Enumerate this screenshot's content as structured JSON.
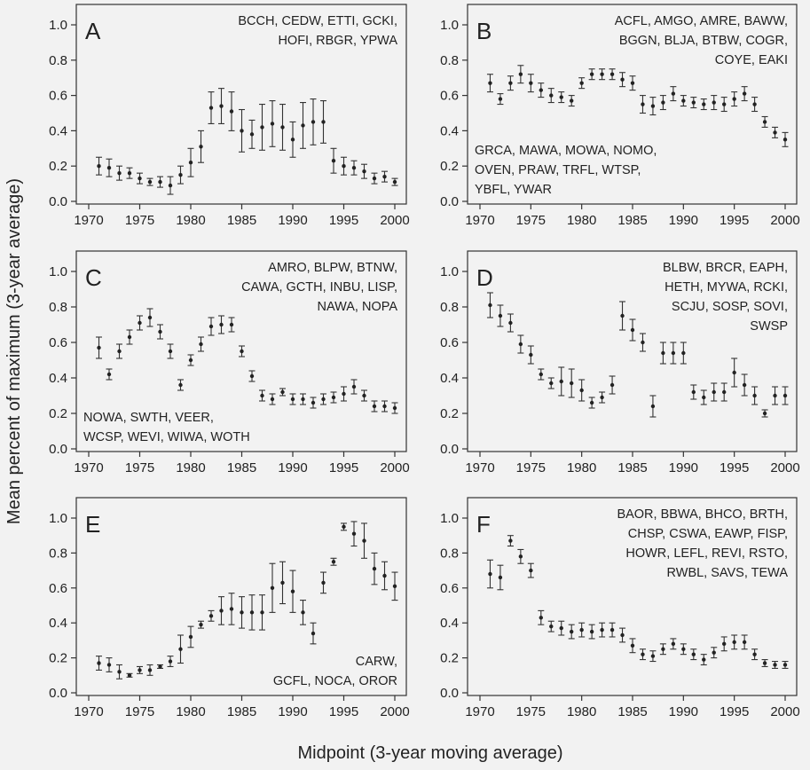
{
  "figure": {
    "ylabel": "Mean percent of maximum (3-year average)",
    "xlabel": "Midpoint (3-year moving average)"
  },
  "chart_data": [
    {
      "panel": "A",
      "type": "scatter",
      "error_bars": true,
      "species_top": [
        "BCCH, CEDW, ETTI, GCKI,",
        "HOFI, RBGR, YPWA"
      ],
      "species_bottom": [],
      "x": [
        1971,
        1972,
        1973,
        1974,
        1975,
        1976,
        1977,
        1978,
        1979,
        1980,
        1981,
        1982,
        1983,
        1984,
        1985,
        1986,
        1987,
        1988,
        1989,
        1990,
        1991,
        1992,
        1993,
        1994,
        1995,
        1996,
        1997,
        1998,
        1999,
        2000
      ],
      "y": [
        0.2,
        0.19,
        0.16,
        0.16,
        0.13,
        0.11,
        0.11,
        0.09,
        0.15,
        0.22,
        0.31,
        0.53,
        0.54,
        0.51,
        0.4,
        0.38,
        0.42,
        0.44,
        0.42,
        0.35,
        0.43,
        0.45,
        0.45,
        0.23,
        0.2,
        0.19,
        0.17,
        0.13,
        0.14,
        0.11
      ],
      "err": [
        0.05,
        0.05,
        0.04,
        0.03,
        0.03,
        0.02,
        0.03,
        0.05,
        0.05,
        0.08,
        0.09,
        0.09,
        0.1,
        0.11,
        0.12,
        0.08,
        0.13,
        0.13,
        0.13,
        0.1,
        0.13,
        0.13,
        0.12,
        0.07,
        0.05,
        0.04,
        0.04,
        0.03,
        0.03,
        0.02
      ],
      "xlim": [
        1970,
        2000
      ],
      "ylim": [
        0,
        1.0
      ],
      "xticks": [
        1970,
        1975,
        1980,
        1985,
        1990,
        1995,
        2000
      ],
      "yticks": [
        "0.0",
        "0.2",
        "0.4",
        "0.6",
        "0.8",
        "1.0"
      ]
    },
    {
      "panel": "B",
      "type": "scatter",
      "error_bars": true,
      "species_top": [
        "ACFL, AMGO, AMRE, BAWW,",
        "BGGN, BLJA, BTBW, COGR,",
        "COYE, EAKI"
      ],
      "species_bottom": [
        "GRCA, MAWA, MOWA, NOMO,",
        "OVEN, PRAW, TRFL, WTSP,",
        "YBFL, YWAR"
      ],
      "x": [
        1971,
        1972,
        1973,
        1974,
        1975,
        1976,
        1977,
        1978,
        1979,
        1980,
        1981,
        1982,
        1983,
        1984,
        1985,
        1986,
        1987,
        1988,
        1989,
        1990,
        1991,
        1992,
        1993,
        1994,
        1995,
        1996,
        1997,
        1998,
        1999,
        2000
      ],
      "y": [
        0.67,
        0.58,
        0.67,
        0.72,
        0.67,
        0.63,
        0.6,
        0.59,
        0.57,
        0.67,
        0.72,
        0.72,
        0.72,
        0.69,
        0.67,
        0.55,
        0.54,
        0.56,
        0.61,
        0.57,
        0.56,
        0.55,
        0.56,
        0.55,
        0.58,
        0.61,
        0.55,
        0.45,
        0.39,
        0.35
      ],
      "err": [
        0.05,
        0.03,
        0.04,
        0.05,
        0.05,
        0.04,
        0.04,
        0.03,
        0.03,
        0.03,
        0.03,
        0.03,
        0.03,
        0.04,
        0.04,
        0.05,
        0.05,
        0.04,
        0.04,
        0.03,
        0.03,
        0.03,
        0.04,
        0.04,
        0.04,
        0.04,
        0.04,
        0.03,
        0.03,
        0.04
      ],
      "xlim": [
        1970,
        2000
      ],
      "ylim": [
        0,
        1.0
      ],
      "xticks": [
        1970,
        1975,
        1980,
        1985,
        1990,
        1995,
        2000
      ],
      "yticks": [
        "0.0",
        "0.2",
        "0.4",
        "0.6",
        "0.8",
        "1.0"
      ]
    },
    {
      "panel": "C",
      "type": "scatter",
      "error_bars": true,
      "species_top": [
        "AMRO, BLPW, BTNW,",
        "CAWA, GCTH, INBU, LISP,",
        "NAWA, NOPA"
      ],
      "species_bottom": [
        "NOWA, SWTH, VEER,",
        "WCSP, WEVI, WIWA, WOTH"
      ],
      "x": [
        1971,
        1972,
        1973,
        1974,
        1975,
        1976,
        1977,
        1978,
        1979,
        1980,
        1981,
        1982,
        1983,
        1984,
        1985,
        1986,
        1987,
        1988,
        1989,
        1990,
        1991,
        1992,
        1993,
        1994,
        1995,
        1996,
        1997,
        1998,
        1999,
        2000
      ],
      "y": [
        0.57,
        0.42,
        0.55,
        0.63,
        0.71,
        0.74,
        0.66,
        0.55,
        0.36,
        0.5,
        0.59,
        0.69,
        0.7,
        0.7,
        0.55,
        0.41,
        0.3,
        0.28,
        0.32,
        0.28,
        0.28,
        0.26,
        0.28,
        0.29,
        0.31,
        0.35,
        0.3,
        0.24,
        0.24,
        0.23
      ],
      "err": [
        0.06,
        0.03,
        0.04,
        0.04,
        0.04,
        0.05,
        0.04,
        0.04,
        0.03,
        0.03,
        0.04,
        0.05,
        0.05,
        0.04,
        0.03,
        0.03,
        0.03,
        0.03,
        0.02,
        0.03,
        0.03,
        0.03,
        0.03,
        0.03,
        0.04,
        0.04,
        0.03,
        0.03,
        0.03,
        0.03
      ],
      "xlim": [
        1970,
        2000
      ],
      "ylim": [
        0,
        1.0
      ],
      "xticks": [
        1970,
        1975,
        1980,
        1985,
        1990,
        1995,
        2000
      ],
      "yticks": [
        "0.0",
        "0.2",
        "0.4",
        "0.6",
        "0.8",
        "1.0"
      ]
    },
    {
      "panel": "D",
      "type": "scatter",
      "error_bars": true,
      "species_top": [
        "BLBW, BRCR, EAPH,",
        "HETH, MYWA, RCKI,",
        "SCJU, SOSP, SOVI,",
        "SWSP"
      ],
      "species_bottom": [],
      "x": [
        1971,
        1972,
        1973,
        1974,
        1975,
        1976,
        1977,
        1978,
        1979,
        1980,
        1981,
        1982,
        1983,
        1984,
        1985,
        1986,
        1987,
        1988,
        1989,
        1990,
        1991,
        1992,
        1993,
        1994,
        1995,
        1996,
        1997,
        1998,
        1999,
        2000
      ],
      "y": [
        0.81,
        0.75,
        0.71,
        0.59,
        0.53,
        0.42,
        0.37,
        0.38,
        0.37,
        0.33,
        0.26,
        0.29,
        0.36,
        0.75,
        0.67,
        0.6,
        0.24,
        0.54,
        0.54,
        0.54,
        0.32,
        0.29,
        0.32,
        0.32,
        0.43,
        0.36,
        0.3,
        0.2,
        0.3,
        0.3
      ],
      "err": [
        0.07,
        0.06,
        0.05,
        0.05,
        0.05,
        0.03,
        0.03,
        0.08,
        0.08,
        0.06,
        0.03,
        0.03,
        0.05,
        0.08,
        0.06,
        0.05,
        0.06,
        0.06,
        0.06,
        0.06,
        0.04,
        0.04,
        0.05,
        0.05,
        0.08,
        0.06,
        0.05,
        0.02,
        0.05,
        0.05
      ],
      "xlim": [
        1970,
        2000
      ],
      "ylim": [
        0,
        1.0
      ],
      "xticks": [
        1970,
        1975,
        1980,
        1985,
        1990,
        1995,
        2000
      ],
      "yticks": [
        "0.0",
        "0.2",
        "0.4",
        "0.6",
        "0.8",
        "1.0"
      ]
    },
    {
      "panel": "E",
      "type": "scatter",
      "error_bars": true,
      "species_top": [],
      "species_bottom": [
        "CARW,",
        "GCFL, NOCA, OROR"
      ],
      "x": [
        1971,
        1972,
        1973,
        1974,
        1975,
        1976,
        1977,
        1978,
        1979,
        1980,
        1981,
        1982,
        1983,
        1984,
        1985,
        1986,
        1987,
        1988,
        1989,
        1990,
        1991,
        1992,
        1993,
        1994,
        1995,
        1996,
        1997,
        1998,
        1999,
        2000
      ],
      "y": [
        0.17,
        0.16,
        0.12,
        0.1,
        0.13,
        0.13,
        0.15,
        0.18,
        0.25,
        0.32,
        0.39,
        0.44,
        0.47,
        0.48,
        0.46,
        0.46,
        0.46,
        0.6,
        0.63,
        0.58,
        0.46,
        0.34,
        0.63,
        0.75,
        0.95,
        0.91,
        0.87,
        0.71,
        0.67,
        0.61
      ],
      "err": [
        0.04,
        0.04,
        0.04,
        0.01,
        0.02,
        0.03,
        0.01,
        0.03,
        0.08,
        0.06,
        0.02,
        0.03,
        0.08,
        0.09,
        0.09,
        0.1,
        0.1,
        0.14,
        0.12,
        0.12,
        0.07,
        0.06,
        0.06,
        0.02,
        0.02,
        0.07,
        0.1,
        0.09,
        0.08,
        0.08
      ],
      "xlim": [
        1970,
        2000
      ],
      "ylim": [
        0,
        1.0
      ],
      "xticks": [
        1970,
        1975,
        1980,
        1985,
        1990,
        1995,
        2000
      ],
      "yticks": [
        "0.0",
        "0.2",
        "0.4",
        "0.6",
        "0.8",
        "1.0"
      ]
    },
    {
      "panel": "F",
      "type": "scatter",
      "error_bars": true,
      "species_top": [
        "BAOR, BBWA, BHCO, BRTH,",
        "CHSP, CSWA, EAWP, FISP,",
        "HOWR, LEFL, REVI, RSTO,",
        "RWBL, SAVS, TEWA"
      ],
      "species_bottom": [],
      "x": [
        1971,
        1972,
        1973,
        1974,
        1975,
        1976,
        1977,
        1978,
        1979,
        1980,
        1981,
        1982,
        1983,
        1984,
        1985,
        1986,
        1987,
        1988,
        1989,
        1990,
        1991,
        1992,
        1993,
        1994,
        1995,
        1996,
        1997,
        1998,
        1999,
        2000
      ],
      "y": [
        0.68,
        0.66,
        0.87,
        0.78,
        0.7,
        0.43,
        0.38,
        0.37,
        0.35,
        0.36,
        0.35,
        0.36,
        0.36,
        0.33,
        0.27,
        0.22,
        0.21,
        0.25,
        0.28,
        0.25,
        0.22,
        0.19,
        0.23,
        0.28,
        0.29,
        0.29,
        0.22,
        0.17,
        0.16,
        0.16
      ],
      "err": [
        0.08,
        0.07,
        0.03,
        0.04,
        0.04,
        0.04,
        0.03,
        0.04,
        0.04,
        0.04,
        0.04,
        0.04,
        0.04,
        0.04,
        0.04,
        0.03,
        0.03,
        0.03,
        0.03,
        0.03,
        0.03,
        0.03,
        0.03,
        0.04,
        0.04,
        0.04,
        0.03,
        0.02,
        0.02,
        0.02
      ],
      "xlim": [
        1970,
        2000
      ],
      "ylim": [
        0,
        1.0
      ],
      "xticks": [
        1970,
        1975,
        1980,
        1985,
        1990,
        1995,
        2000
      ],
      "yticks": [
        "0.0",
        "0.2",
        "0.4",
        "0.6",
        "0.8",
        "1.0"
      ]
    }
  ]
}
